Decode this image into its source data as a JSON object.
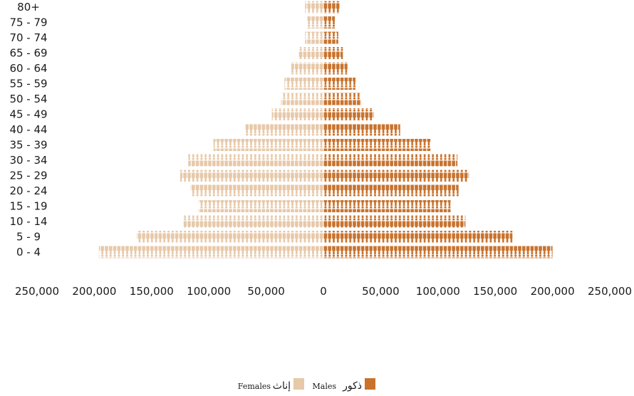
{
  "chart_data": {
    "type": "bar",
    "title": "",
    "xlabel": "",
    "ylabel": "",
    "xlim": [
      -250000,
      250000
    ],
    "x_ticks": [
      -250000,
      -200000,
      -150000,
      -100000,
      -50000,
      0,
      50000,
      100000,
      150000,
      200000,
      250000
    ],
    "x_tick_labels": [
      "250,000",
      "200,000",
      "150,000",
      "100,000",
      "50,000",
      "0",
      "50,000",
      "100,000",
      "150,000",
      "200,000",
      "250,000"
    ],
    "categories": [
      "0 - 4",
      "5 - 9",
      "10 - 14",
      "15 - 19",
      "20 - 24",
      "25 - 29",
      "30 - 34",
      "35 - 39",
      "40 - 44",
      "45 - 49",
      "50 - 54",
      "55 - 59",
      "60 - 64",
      "65 - 69",
      "70 - 74",
      "75 - 79",
      "80+"
    ],
    "series": [
      {
        "name": "Females",
        "name_ar": "إناث",
        "color": "#E7C8A8",
        "values": [
          196000,
          163000,
          122000,
          109000,
          116000,
          125000,
          118000,
          96000,
          68000,
          45000,
          37000,
          34000,
          28000,
          22000,
          16000,
          14000,
          16000
        ]
      },
      {
        "name": "Males",
        "name_ar": "ذكور",
        "color": "#C8722C",
        "values": [
          200000,
          165000,
          124000,
          111000,
          118000,
          127000,
          117000,
          94000,
          67000,
          44000,
          33000,
          28000,
          21000,
          17000,
          13000,
          10000,
          14000
        ]
      }
    ],
    "legend": "bottom-center",
    "grid": false,
    "icon": "person-icon"
  }
}
